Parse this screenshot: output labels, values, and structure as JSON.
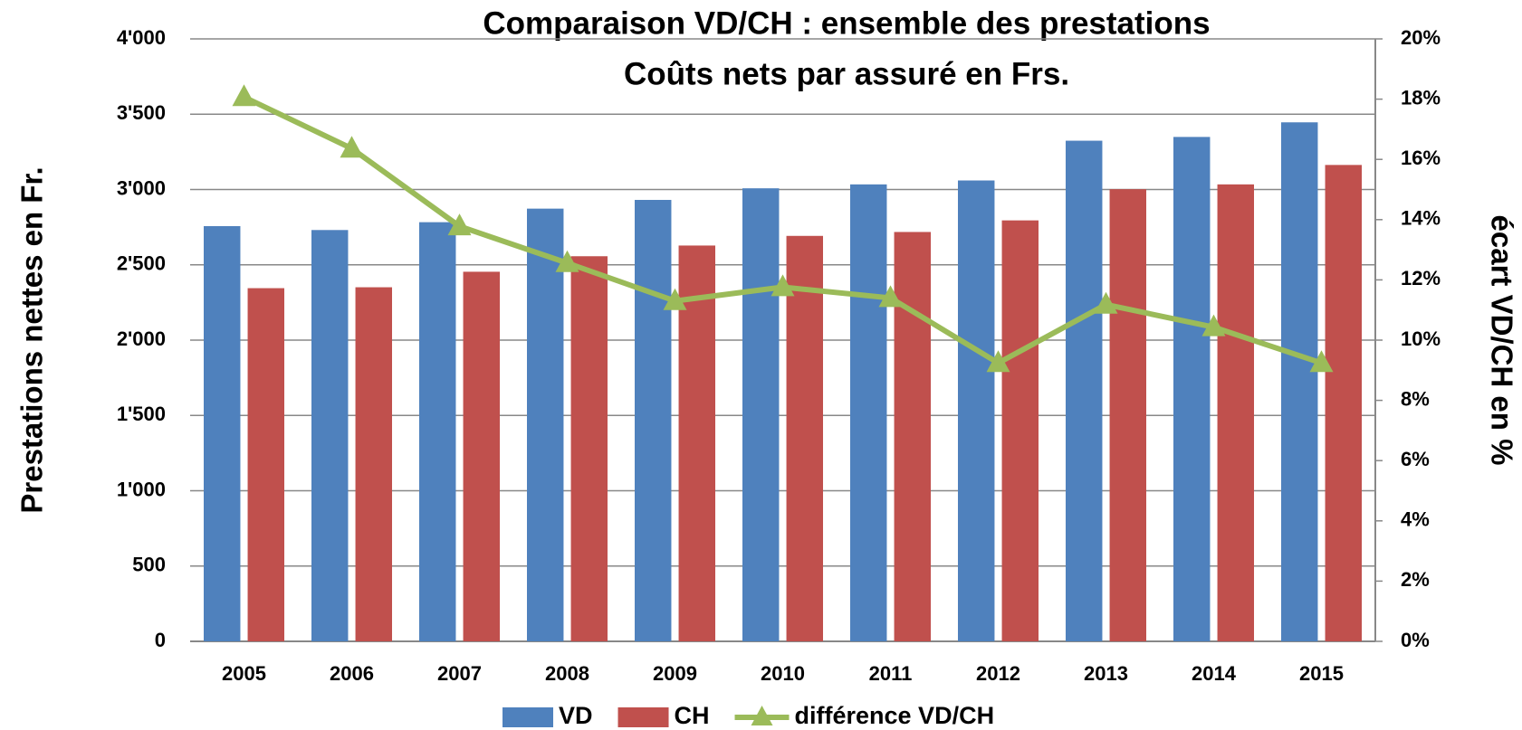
{
  "chart_data": {
    "type": "bar",
    "title": "Comparaison  VD/CH : ensemble des prestations",
    "subtitle": "Coûts nets par assuré en Frs.",
    "y_label": "Prestations nettes en Fr.",
    "y2_label": "écart VD/CH en %",
    "categories": [
      "2005",
      "2006",
      "2007",
      "2008",
      "2009",
      "2010",
      "2011",
      "2012",
      "2013",
      "2014",
      "2015"
    ],
    "series": [
      {
        "name": "VD",
        "color": "#4f81bd",
        "type": "bar",
        "values": [
          2757,
          2731,
          2783,
          2873,
          2931,
          3008,
          3034,
          3060,
          3324,
          3349,
          3446
        ]
      },
      {
        "name": "CH",
        "color": "#c0504d",
        "type": "bar",
        "values": [
          2345,
          2351,
          2454,
          2557,
          2628,
          2692,
          2718,
          2795,
          3002,
          3034,
          3163
        ]
      },
      {
        "name": "différence VD/CH",
        "color": "#9bbb59",
        "type": "line",
        "axis": "y2",
        "values": [
          18.07,
          16.36,
          13.78,
          12.56,
          11.3,
          11.76,
          11.4,
          9.24,
          11.18,
          10.43,
          9.24
        ]
      }
    ],
    "ylim": [
      0,
      4000
    ],
    "yticks": [
      0,
      500,
      {
        "value": 1000,
        "label": "1'000"
      },
      {
        "value": 1500,
        "label": "1'500"
      },
      {
        "value": 2000,
        "label": "2'000"
      },
      {
        "value": 2500,
        "label": "2'500"
      },
      {
        "value": 3000,
        "label": "3'000"
      },
      {
        "value": 3500,
        "label": "3'500"
      },
      {
        "value": 4000,
        "label": "4'000"
      }
    ],
    "y2lim": [
      0,
      20
    ],
    "y2ticks": [
      {
        "value": 0,
        "label": "0%"
      },
      {
        "value": 2,
        "label": "2%"
      },
      {
        "value": 4,
        "label": "4%"
      },
      {
        "value": 6,
        "label": "6%"
      },
      {
        "value": 8,
        "label": "8%"
      },
      {
        "value": 10,
        "label": "10%"
      },
      {
        "value": 12,
        "label": "12%"
      },
      {
        "value": 14,
        "label": "14%"
      },
      {
        "value": 16,
        "label": "16%"
      },
      {
        "value": 18,
        "label": "18%"
      },
      {
        "value": 20,
        "label": "20%"
      }
    ],
    "grid": true,
    "legend": "bottom"
  }
}
